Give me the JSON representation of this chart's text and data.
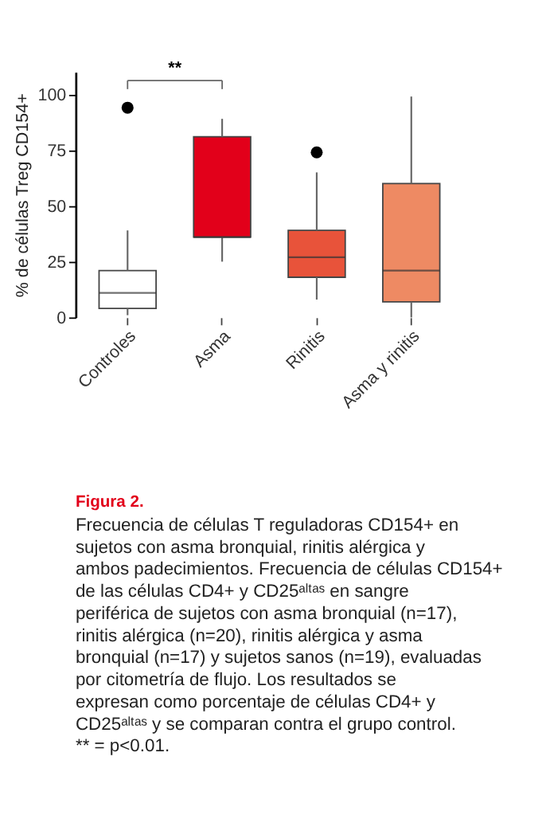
{
  "chart_data": {
    "type": "box",
    "ylabel": "% de células Treg CD154+",
    "categories": [
      "Controles",
      "Asma",
      "Rinitis",
      "Asma y rinitis"
    ],
    "boxes": [
      {
        "low": 1,
        "q1": 4,
        "median": 11,
        "q3": 21,
        "high": 39,
        "outliers": [
          94
        ]
      },
      {
        "low": 25,
        "q1": 36,
        "median": 36,
        "q3": 81,
        "high": 89
      },
      {
        "low": 8,
        "q1": 18,
        "median": 27,
        "q3": 39,
        "high": 65,
        "outliers": [
          74
        ]
      },
      {
        "low": 0,
        "q1": 7,
        "median": 21,
        "q3": 60,
        "high": 99
      }
    ],
    "colors": [
      "#ffffff",
      "#e2001a",
      "#e8533a",
      "#ee8a63"
    ],
    "ylim": [
      0,
      110
    ],
    "yticks": [
      0,
      25,
      50,
      75,
      100
    ],
    "grid": false,
    "annotations": [
      "**",
      "Figura 2.",
      "Frecuencia de células T reguladoras CD154+ en sujetos con asma bronquial, rinitis alérgica y ambos padecimientos. Frecuencia de células CD154+ de las células CD4+ y CD25ᵃˡᵗᵃˢ en sangre periférica de sujetos con asma bronquial (n=17), rinitis alérgica (n=20), rinitis alérgica y asma bronquial (n=17) y sujetos sanos (n=19), evaluadas por citometría de flujo. Los resultados se expresan como porcentaje de células CD4+ y CD25ᵃˡᵗᵃˢ y se comparan contra el grupo control.",
      "** = p<0.01."
    ]
  }
}
